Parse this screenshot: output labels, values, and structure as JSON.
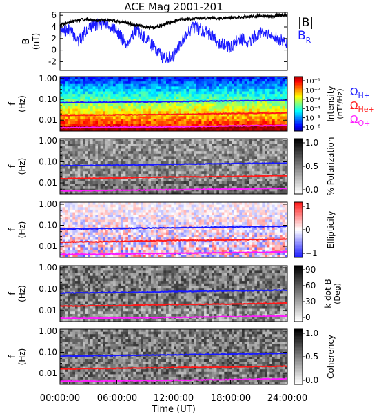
{
  "title": "ACE Mag 2001-201",
  "colors": {
    "B_total": "#000000",
    "B_R": "#1a1aff",
    "gyro_H": "#1a1aff",
    "gyro_He": "#ff1a1a",
    "gyro_O": "#ff1aff"
  },
  "legend": {
    "B_total": "|B|",
    "B_R_main": "B",
    "B_R_sub": "R",
    "omega": "Ω",
    "H_sub": "H+",
    "He_sub": "He+",
    "O_sub": "O+"
  },
  "xaxis": {
    "label": "Time (UT)",
    "ticks": [
      "00:00:00",
      "06:00:00",
      "12:00:00",
      "18:00:00",
      "24:00:00"
    ]
  },
  "freq_ticks": [
    "1.00",
    "0.10",
    "0.01"
  ],
  "panels": {
    "B": {
      "ylabel_main": "B",
      "ylabel_unit": "(nT)",
      "ticks": [
        "6",
        "4",
        "2",
        "0",
        "-2"
      ]
    },
    "intensity": {
      "ylabel_main": "f",
      "ylabel_unit": "(Hz)",
      "cbar_label_1": "Intensity",
      "cbar_label_2": "(nT²/Hz)",
      "cbar_ticks": [
        "10⁻¹",
        "10⁻²",
        "10⁻³",
        "10⁻⁴",
        "10⁻⁵",
        "10⁻⁶"
      ]
    },
    "polarization": {
      "ylabel_main": "f",
      "ylabel_unit": "(Hz)",
      "cbar_label_1": "% Polarization",
      "cbar_ticks": [
        "1.0",
        "0.5",
        "0.0"
      ]
    },
    "ellipticity": {
      "ylabel_main": "f",
      "ylabel_unit": "(Hz)",
      "cbar_label_1": "Ellipticity",
      "cbar_ticks": [
        "1",
        "0",
        "−1"
      ]
    },
    "kdotb": {
      "ylabel_main": "f",
      "ylabel_unit": "(Hz)",
      "cbar_label_1": "k dot B",
      "cbar_label_2": "(Deg)",
      "cbar_ticks": [
        "90",
        "60",
        "30",
        "0"
      ]
    },
    "coherency": {
      "ylabel_main": "f",
      "ylabel_unit": "(Hz)",
      "cbar_label_1": "Coherency",
      "cbar_ticks": [
        "1.0",
        "0.5",
        "0.0"
      ]
    }
  },
  "chart_data": [
    {
      "type": "line",
      "panel": "magnetic field magnitude and radial component",
      "x_unit_hours": true,
      "xlim": [
        0,
        24
      ],
      "ylim": [
        -3.5,
        6.5
      ],
      "ylabel": "B (nT)",
      "grid": false,
      "legend_position": "right",
      "series": [
        {
          "name": "|B|",
          "x": [
            0,
            1,
            2,
            3,
            4,
            5,
            6,
            7,
            8,
            9,
            10,
            11,
            12,
            13,
            14,
            15,
            16,
            17,
            18,
            19,
            20,
            21,
            22,
            23,
            24
          ],
          "values": [
            4.4,
            4.8,
            5.2,
            5.3,
            5.1,
            5.2,
            5.0,
            4.7,
            4.3,
            4.0,
            3.9,
            4.4,
            5.0,
            5.3,
            5.4,
            5.5,
            5.6,
            5.5,
            5.6,
            5.7,
            5.8,
            5.9,
            5.8,
            6.0,
            6.1
          ]
        },
        {
          "name": "B_R",
          "x": [
            0,
            1,
            2,
            3,
            4,
            5,
            6,
            7,
            8,
            9,
            10,
            11,
            12,
            13,
            14,
            15,
            16,
            17,
            18,
            19,
            20,
            21,
            22,
            23,
            24
          ],
          "values": [
            3.0,
            3.5,
            1.5,
            4.0,
            4.5,
            4.6,
            3.2,
            1.0,
            3.5,
            2.0,
            0.5,
            -1.5,
            -1.0,
            2.0,
            4.0,
            3.5,
            2.5,
            1.0,
            0.5,
            2.0,
            1.5,
            3.0,
            2.5,
            2.0,
            1.0
          ]
        }
      ]
    },
    {
      "type": "heatmap",
      "panel": "Intensity",
      "x_unit_hours": true,
      "xlim": [
        0,
        24
      ],
      "ylim_hz": [
        0.003,
        1.2
      ],
      "ylabel": "f (Hz)",
      "y_scale": "log",
      "colorbar": {
        "label": "Intensity (nT^2/Hz)",
        "scale": "log",
        "range": [
          1e-06,
          0.1
        ]
      },
      "series": [
        {
          "name": "Ω_H+",
          "x": [
            0,
            6,
            12,
            18,
            24
          ],
          "values": [
            0.07,
            0.074,
            0.078,
            0.085,
            0.09
          ]
        },
        {
          "name": "Ω_He+",
          "x": [
            0,
            6,
            12,
            18,
            24
          ],
          "values": [
            0.017,
            0.018,
            0.019,
            0.021,
            0.022
          ]
        },
        {
          "name": "Ω_O+",
          "x": [
            0,
            6,
            12,
            18,
            24
          ],
          "values": [
            0.0044,
            0.0046,
            0.0048,
            0.0053,
            0.0056
          ]
        }
      ]
    },
    {
      "type": "heatmap",
      "panel": "% Polarization",
      "x_unit_hours": true,
      "xlim": [
        0,
        24
      ],
      "y_scale": "log",
      "ylabel": "f (Hz)",
      "colorbar": {
        "label": "% Polarization",
        "range": [
          0.0,
          1.0
        ]
      },
      "series": [
        {
          "name": "Ω_H+",
          "x": [
            0,
            6,
            12,
            18,
            24
          ],
          "values": [
            0.066,
            0.07,
            0.076,
            0.082,
            0.088
          ]
        },
        {
          "name": "Ω_He+",
          "x": [
            0,
            6,
            12,
            18,
            24
          ],
          "values": [
            0.016,
            0.017,
            0.019,
            0.02,
            0.022
          ]
        },
        {
          "name": "Ω_O+",
          "x": [
            0,
            6,
            12,
            18,
            24
          ],
          "values": [
            0.0042,
            0.0044,
            0.0047,
            0.0051,
            0.0055
          ]
        }
      ]
    },
    {
      "type": "heatmap",
      "panel": "Ellipticity",
      "x_unit_hours": true,
      "xlim": [
        0,
        24
      ],
      "y_scale": "log",
      "ylabel": "f (Hz)",
      "colorbar": {
        "label": "Ellipticity",
        "range": [
          -1,
          1
        ]
      },
      "series": [
        {
          "name": "Ω_H+",
          "x": [
            0,
            6,
            12,
            18,
            24
          ],
          "values": [
            0.066,
            0.07,
            0.076,
            0.082,
            0.088
          ]
        },
        {
          "name": "Ω_He+",
          "x": [
            0,
            6,
            12,
            18,
            24
          ],
          "values": [
            0.016,
            0.017,
            0.019,
            0.02,
            0.022
          ]
        },
        {
          "name": "Ω_O+",
          "x": [
            0,
            6,
            12,
            18,
            24
          ],
          "values": [
            0.0042,
            0.0044,
            0.0047,
            0.0051,
            0.0055
          ]
        }
      ]
    },
    {
      "type": "heatmap",
      "panel": "k dot B",
      "x_unit_hours": true,
      "xlim": [
        0,
        24
      ],
      "y_scale": "log",
      "ylabel": "f (Hz)",
      "colorbar": {
        "label": "k dot B (Deg)",
        "range": [
          0,
          90
        ]
      },
      "series": [
        {
          "name": "Ω_H+",
          "x": [
            0,
            6,
            12,
            18,
            24
          ],
          "values": [
            0.066,
            0.07,
            0.076,
            0.082,
            0.088
          ]
        },
        {
          "name": "Ω_He+",
          "x": [
            0,
            6,
            12,
            18,
            24
          ],
          "values": [
            0.016,
            0.017,
            0.019,
            0.02,
            0.022
          ]
        },
        {
          "name": "Ω_O+",
          "x": [
            0,
            6,
            12,
            18,
            24
          ],
          "values": [
            0.0042,
            0.0044,
            0.0047,
            0.0051,
            0.0055
          ]
        }
      ]
    },
    {
      "type": "heatmap",
      "panel": "Coherency",
      "x_unit_hours": true,
      "xlim": [
        0,
        24
      ],
      "y_scale": "log",
      "ylabel": "f (Hz)",
      "colorbar": {
        "label": "Coherency",
        "range": [
          0.0,
          1.0
        ]
      },
      "series": [
        {
          "name": "Ω_H+",
          "x": [
            0,
            6,
            12,
            18,
            24
          ],
          "values": [
            0.066,
            0.07,
            0.076,
            0.082,
            0.088
          ]
        },
        {
          "name": "Ω_He+",
          "x": [
            0,
            6,
            12,
            18,
            24
          ],
          "values": [
            0.016,
            0.017,
            0.019,
            0.02,
            0.022
          ]
        },
        {
          "name": "Ω_O+",
          "x": [
            0,
            6,
            12,
            18,
            24
          ],
          "values": [
            0.0042,
            0.0044,
            0.0047,
            0.0051,
            0.0055
          ]
        }
      ]
    }
  ]
}
